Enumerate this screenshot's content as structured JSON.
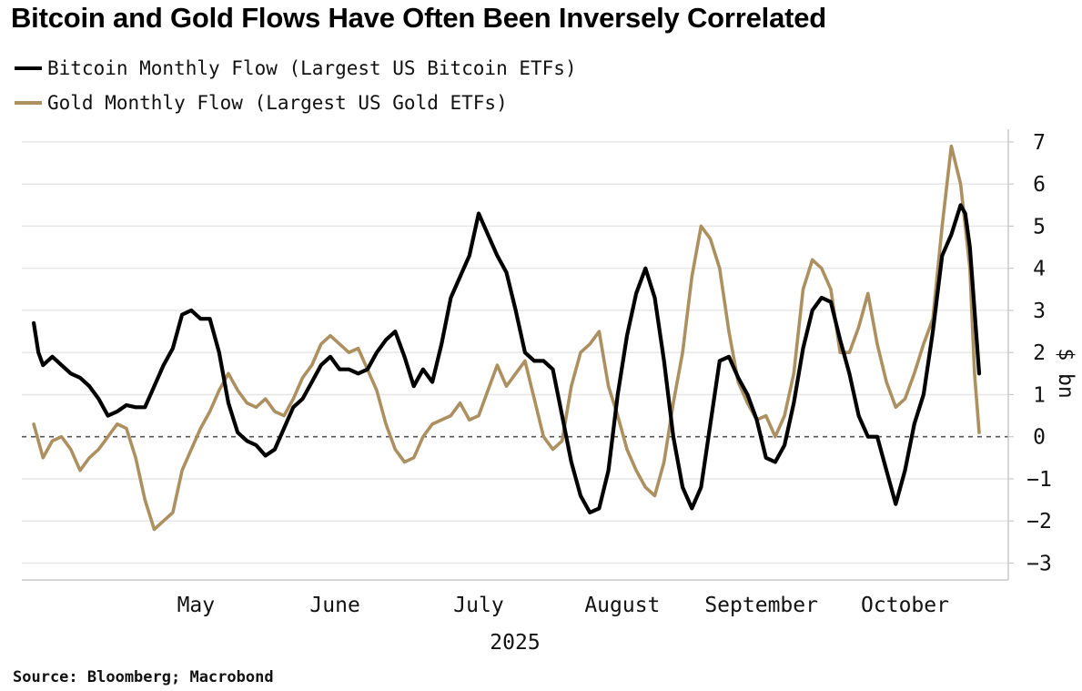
{
  "title": "Bitcoin and Gold Flows Have Often Been Inversely Correlated",
  "source": "Source: Bloomberg; Macrobond",
  "colors": {
    "bitcoin": "#000000",
    "gold": "#ad9060",
    "grid": "#e6e6e6",
    "zero": "#555555",
    "axis": "#c8c8c8"
  },
  "chart_data": {
    "type": "line",
    "title": "Bitcoin and Gold Flows Have Often Been Inversely Correlated",
    "ylabel": "$ bn",
    "xlabel": "2025",
    "ylim": [
      -3.4,
      7.3
    ],
    "yticks": [
      -3,
      -2,
      -1,
      0,
      1,
      2,
      3,
      4,
      5,
      6,
      7
    ],
    "xlim": [
      "2025-04-09",
      "2025-10-31"
    ],
    "x_ticks": [
      {
        "label": "May",
        "date": "2025-05-15"
      },
      {
        "label": "June",
        "date": "2025-06-14"
      },
      {
        "label": "July",
        "date": "2025-07-15"
      },
      {
        "label": "August",
        "date": "2025-08-15"
      },
      {
        "label": "September",
        "date": "2025-09-14"
      },
      {
        "label": "October",
        "date": "2025-10-15"
      }
    ],
    "grid": true,
    "legend_position": "top-left",
    "series": [
      {
        "name": "Bitcoin Monthly Flow (Largest US Bitcoin ETFs)",
        "color": "#000000",
        "points": [
          [
            "2025-04-10",
            2.7
          ],
          [
            "2025-04-11",
            2.0
          ],
          [
            "2025-04-12",
            1.7
          ],
          [
            "2025-04-14",
            1.9
          ],
          [
            "2025-04-16",
            1.7
          ],
          [
            "2025-04-18",
            1.5
          ],
          [
            "2025-04-20",
            1.4
          ],
          [
            "2025-04-22",
            1.2
          ],
          [
            "2025-04-24",
            0.9
          ],
          [
            "2025-04-26",
            0.5
          ],
          [
            "2025-04-28",
            0.6
          ],
          [
            "2025-04-30",
            0.75
          ],
          [
            "2025-05-02",
            0.7
          ],
          [
            "2025-05-04",
            0.7
          ],
          [
            "2025-05-06",
            1.2
          ],
          [
            "2025-05-08",
            1.7
          ],
          [
            "2025-05-10",
            2.1
          ],
          [
            "2025-05-12",
            2.9
          ],
          [
            "2025-05-14",
            3.0
          ],
          [
            "2025-05-16",
            2.8
          ],
          [
            "2025-05-18",
            2.8
          ],
          [
            "2025-05-20",
            2.0
          ],
          [
            "2025-05-22",
            0.8
          ],
          [
            "2025-05-24",
            0.1
          ],
          [
            "2025-05-26",
            -0.1
          ],
          [
            "2025-05-28",
            -0.2
          ],
          [
            "2025-05-30",
            -0.45
          ],
          [
            "2025-06-01",
            -0.3
          ],
          [
            "2025-06-03",
            0.2
          ],
          [
            "2025-06-05",
            0.7
          ],
          [
            "2025-06-07",
            0.9
          ],
          [
            "2025-06-09",
            1.3
          ],
          [
            "2025-06-11",
            1.7
          ],
          [
            "2025-06-13",
            1.9
          ],
          [
            "2025-06-15",
            1.6
          ],
          [
            "2025-06-17",
            1.6
          ],
          [
            "2025-06-19",
            1.5
          ],
          [
            "2025-06-21",
            1.6
          ],
          [
            "2025-06-23",
            2.0
          ],
          [
            "2025-06-25",
            2.3
          ],
          [
            "2025-06-27",
            2.5
          ],
          [
            "2025-06-29",
            1.9
          ],
          [
            "2025-07-01",
            1.2
          ],
          [
            "2025-07-03",
            1.6
          ],
          [
            "2025-07-05",
            1.3
          ],
          [
            "2025-07-07",
            2.2
          ],
          [
            "2025-07-09",
            3.3
          ],
          [
            "2025-07-11",
            3.8
          ],
          [
            "2025-07-13",
            4.3
          ],
          [
            "2025-07-15",
            5.3
          ],
          [
            "2025-07-17",
            4.8
          ],
          [
            "2025-07-19",
            4.3
          ],
          [
            "2025-07-21",
            3.9
          ],
          [
            "2025-07-23",
            3.0
          ],
          [
            "2025-07-25",
            2.0
          ],
          [
            "2025-07-27",
            1.8
          ],
          [
            "2025-07-29",
            1.8
          ],
          [
            "2025-07-31",
            1.6
          ],
          [
            "2025-08-02",
            0.5
          ],
          [
            "2025-08-04",
            -0.6
          ],
          [
            "2025-08-06",
            -1.4
          ],
          [
            "2025-08-08",
            -1.8
          ],
          [
            "2025-08-10",
            -1.7
          ],
          [
            "2025-08-12",
            -0.8
          ],
          [
            "2025-08-14",
            1.0
          ],
          [
            "2025-08-16",
            2.4
          ],
          [
            "2025-08-18",
            3.4
          ],
          [
            "2025-08-20",
            4.0
          ],
          [
            "2025-08-22",
            3.3
          ],
          [
            "2025-08-24",
            1.8
          ],
          [
            "2025-08-26",
            0.0
          ],
          [
            "2025-08-28",
            -1.2
          ],
          [
            "2025-08-30",
            -1.7
          ],
          [
            "2025-09-01",
            -1.2
          ],
          [
            "2025-09-03",
            0.3
          ],
          [
            "2025-09-05",
            1.8
          ],
          [
            "2025-09-07",
            1.9
          ],
          [
            "2025-09-09",
            1.4
          ],
          [
            "2025-09-11",
            1.0
          ],
          [
            "2025-09-13",
            0.4
          ],
          [
            "2025-09-15",
            -0.5
          ],
          [
            "2025-09-17",
            -0.6
          ],
          [
            "2025-09-19",
            -0.2
          ],
          [
            "2025-09-21",
            0.8
          ],
          [
            "2025-09-23",
            2.1
          ],
          [
            "2025-09-25",
            3.0
          ],
          [
            "2025-09-27",
            3.3
          ],
          [
            "2025-09-29",
            3.2
          ],
          [
            "2025-10-01",
            2.3
          ],
          [
            "2025-10-03",
            1.5
          ],
          [
            "2025-10-05",
            0.5
          ],
          [
            "2025-10-07",
            0.0
          ],
          [
            "2025-10-09",
            0.0
          ],
          [
            "2025-10-11",
            -0.8
          ],
          [
            "2025-10-13",
            -1.6
          ],
          [
            "2025-10-15",
            -0.8
          ],
          [
            "2025-10-17",
            0.3
          ],
          [
            "2025-10-19",
            1.0
          ],
          [
            "2025-10-21",
            2.5
          ],
          [
            "2025-10-23",
            4.3
          ],
          [
            "2025-10-25",
            4.8
          ],
          [
            "2025-10-27",
            5.5
          ],
          [
            "2025-10-28",
            5.3
          ],
          [
            "2025-10-29",
            4.5
          ],
          [
            "2025-10-30",
            3.0
          ],
          [
            "2025-10-31",
            1.5
          ]
        ]
      },
      {
        "name": "Gold Monthly Flow (Largest US Gold ETFs)",
        "color": "#ad9060",
        "points": [
          [
            "2025-04-10",
            0.3
          ],
          [
            "2025-04-12",
            -0.5
          ],
          [
            "2025-04-14",
            -0.1
          ],
          [
            "2025-04-16",
            0.0
          ],
          [
            "2025-04-18",
            -0.3
          ],
          [
            "2025-04-20",
            -0.8
          ],
          [
            "2025-04-22",
            -0.5
          ],
          [
            "2025-04-24",
            -0.3
          ],
          [
            "2025-04-26",
            0.0
          ],
          [
            "2025-04-28",
            0.3
          ],
          [
            "2025-04-30",
            0.2
          ],
          [
            "2025-05-02",
            -0.5
          ],
          [
            "2025-05-04",
            -1.5
          ],
          [
            "2025-05-06",
            -2.2
          ],
          [
            "2025-05-08",
            -2.0
          ],
          [
            "2025-05-10",
            -1.8
          ],
          [
            "2025-05-12",
            -0.8
          ],
          [
            "2025-05-14",
            -0.3
          ],
          [
            "2025-05-16",
            0.2
          ],
          [
            "2025-05-18",
            0.6
          ],
          [
            "2025-05-20",
            1.1
          ],
          [
            "2025-05-22",
            1.5
          ],
          [
            "2025-05-24",
            1.1
          ],
          [
            "2025-05-26",
            0.8
          ],
          [
            "2025-05-28",
            0.7
          ],
          [
            "2025-05-30",
            0.9
          ],
          [
            "2025-06-01",
            0.6
          ],
          [
            "2025-06-03",
            0.5
          ],
          [
            "2025-06-05",
            0.9
          ],
          [
            "2025-06-07",
            1.4
          ],
          [
            "2025-06-09",
            1.7
          ],
          [
            "2025-06-11",
            2.2
          ],
          [
            "2025-06-13",
            2.4
          ],
          [
            "2025-06-15",
            2.2
          ],
          [
            "2025-06-17",
            2.0
          ],
          [
            "2025-06-19",
            2.1
          ],
          [
            "2025-06-21",
            1.6
          ],
          [
            "2025-06-23",
            1.1
          ],
          [
            "2025-06-25",
            0.3
          ],
          [
            "2025-06-27",
            -0.3
          ],
          [
            "2025-06-29",
            -0.6
          ],
          [
            "2025-07-01",
            -0.5
          ],
          [
            "2025-07-03",
            0.0
          ],
          [
            "2025-07-05",
            0.3
          ],
          [
            "2025-07-07",
            0.4
          ],
          [
            "2025-07-09",
            0.5
          ],
          [
            "2025-07-11",
            0.8
          ],
          [
            "2025-07-13",
            0.4
          ],
          [
            "2025-07-15",
            0.5
          ],
          [
            "2025-07-17",
            1.1
          ],
          [
            "2025-07-19",
            1.7
          ],
          [
            "2025-07-21",
            1.2
          ],
          [
            "2025-07-23",
            1.5
          ],
          [
            "2025-07-25",
            1.8
          ],
          [
            "2025-07-27",
            0.9
          ],
          [
            "2025-07-29",
            0.0
          ],
          [
            "2025-07-31",
            -0.3
          ],
          [
            "2025-08-02",
            -0.1
          ],
          [
            "2025-08-04",
            1.2
          ],
          [
            "2025-08-06",
            2.0
          ],
          [
            "2025-08-08",
            2.2
          ],
          [
            "2025-08-10",
            2.5
          ],
          [
            "2025-08-12",
            1.2
          ],
          [
            "2025-08-14",
            0.5
          ],
          [
            "2025-08-16",
            -0.3
          ],
          [
            "2025-08-18",
            -0.8
          ],
          [
            "2025-08-20",
            -1.2
          ],
          [
            "2025-08-22",
            -1.4
          ],
          [
            "2025-08-24",
            -0.6
          ],
          [
            "2025-08-26",
            0.8
          ],
          [
            "2025-08-28",
            2.0
          ],
          [
            "2025-08-30",
            3.8
          ],
          [
            "2025-09-01",
            5.0
          ],
          [
            "2025-09-03",
            4.7
          ],
          [
            "2025-09-05",
            4.0
          ],
          [
            "2025-09-07",
            2.5
          ],
          [
            "2025-09-09",
            1.3
          ],
          [
            "2025-09-11",
            0.8
          ],
          [
            "2025-09-13",
            0.4
          ],
          [
            "2025-09-15",
            0.5
          ],
          [
            "2025-09-17",
            0.0
          ],
          [
            "2025-09-19",
            0.5
          ],
          [
            "2025-09-21",
            1.5
          ],
          [
            "2025-09-23",
            3.5
          ],
          [
            "2025-09-25",
            4.2
          ],
          [
            "2025-09-27",
            4.0
          ],
          [
            "2025-09-29",
            3.5
          ],
          [
            "2025-10-01",
            2.0
          ],
          [
            "2025-10-03",
            2.0
          ],
          [
            "2025-10-05",
            2.6
          ],
          [
            "2025-10-07",
            3.4
          ],
          [
            "2025-10-09",
            2.2
          ],
          [
            "2025-10-11",
            1.3
          ],
          [
            "2025-10-13",
            0.7
          ],
          [
            "2025-10-15",
            0.9
          ],
          [
            "2025-10-17",
            1.5
          ],
          [
            "2025-10-19",
            2.2
          ],
          [
            "2025-10-21",
            2.8
          ],
          [
            "2025-10-23",
            5.0
          ],
          [
            "2025-10-25",
            6.9
          ],
          [
            "2025-10-27",
            6.0
          ],
          [
            "2025-10-29",
            4.0
          ],
          [
            "2025-10-30",
            1.5
          ],
          [
            "2025-10-31",
            0.1
          ]
        ]
      }
    ]
  }
}
